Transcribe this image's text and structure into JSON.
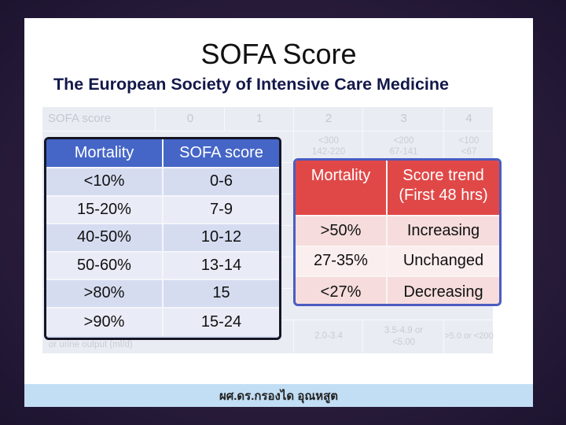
{
  "title": "SOFA Score",
  "subtitle": "The European Society of Intensive Care Medicine",
  "background_table": {
    "headers": [
      "SOFA score",
      "0",
      "1",
      "2",
      "3",
      "4"
    ],
    "row1": [
      "",
      "",
      "",
      "<300\n142-220",
      "<200\n67-141",
      "<100\n<67"
    ],
    "row_last": [
      "",
      "",
      "",
      "2.0-3.4",
      "3.5-4.9 or\n<5.00",
      ">5.0 or <200"
    ],
    "footer_label": "or urine output (ml/d)",
    "fragment_e": "e"
  },
  "mortality_table": {
    "headers": [
      "Mortality",
      "SOFA score"
    ],
    "rows": [
      [
        "<10%",
        "0-6"
      ],
      [
        "15-20%",
        "7-9"
      ],
      [
        "40-50%",
        "10-12"
      ],
      [
        "50-60%",
        "13-14"
      ],
      [
        ">80%",
        "15"
      ],
      [
        ">90%",
        "15-24"
      ]
    ]
  },
  "trend_table": {
    "headers": [
      "Mortality",
      "Score trend\n(First 48 hrs)"
    ],
    "rows": [
      [
        ">50%",
        "Increasing"
      ],
      [
        "27-35%",
        "Unchanged"
      ],
      [
        "<27%",
        "Decreasing"
      ]
    ]
  },
  "footer": "ผศ.ดร.กรองได อุณหสูต",
  "colors": {
    "left_header": "#4566c7",
    "left_body": "#d6dcf0",
    "right_header": "#e04848",
    "right_body": "#f6dcdc",
    "footer_band": "#c2def4"
  }
}
